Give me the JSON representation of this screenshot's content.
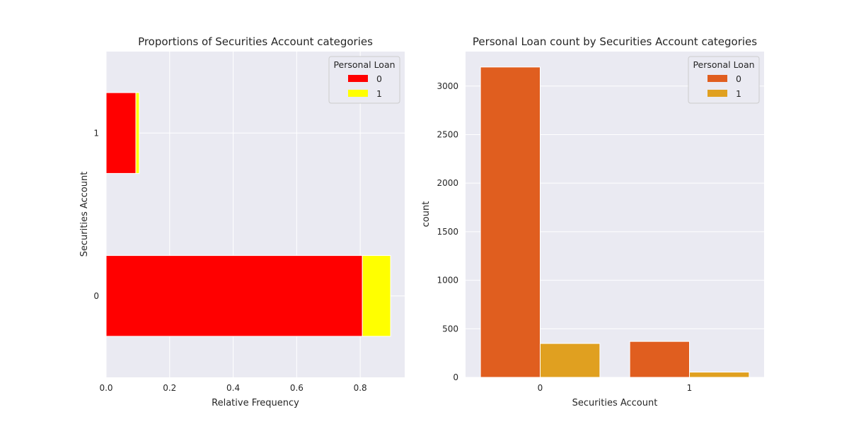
{
  "chart_data": [
    {
      "type": "bar",
      "orientation": "horizontal",
      "stacked": true,
      "title": "Proportions of Securities Account categories",
      "xlabel": "Relative Frequency",
      "ylabel": "Securities Account",
      "categories": [
        "0",
        "1"
      ],
      "series": [
        {
          "name": "0",
          "values": [
            0.8068,
            0.0936
          ]
        },
        {
          "name": "1",
          "values": [
            0.0888,
            0.0108
          ]
        }
      ],
      "colors": [
        "#ff0000",
        "#ffff00"
      ],
      "xlim": [
        0,
        0.94
      ],
      "xticks": [
        "0.0",
        "0.2",
        "0.4",
        "0.6",
        "0.8"
      ],
      "legend": {
        "title": "Personal Loan",
        "position": "top-right",
        "labels": [
          "0",
          "1"
        ]
      },
      "grid": true,
      "background": "#eaeaf2"
    },
    {
      "type": "bar",
      "orientation": "vertical",
      "grouped": true,
      "title": "Personal Loan count by Securities Account categories",
      "xlabel": "Securities Account",
      "ylabel": "count",
      "categories": [
        "0",
        "1"
      ],
      "series": [
        {
          "name": "0",
          "values": [
            3196,
            370
          ]
        },
        {
          "name": "1",
          "values": [
            349,
            54
          ]
        }
      ],
      "colors": [
        "#e05e1f",
        "#e0a020"
      ],
      "ylim": [
        0,
        3355
      ],
      "yticks": [
        "0",
        "500",
        "1000",
        "1500",
        "2000",
        "2500",
        "3000"
      ],
      "legend": {
        "title": "Personal Loan",
        "position": "top-right",
        "labels": [
          "0",
          "1"
        ]
      },
      "grid": true,
      "background": "#eaeaf2"
    }
  ]
}
